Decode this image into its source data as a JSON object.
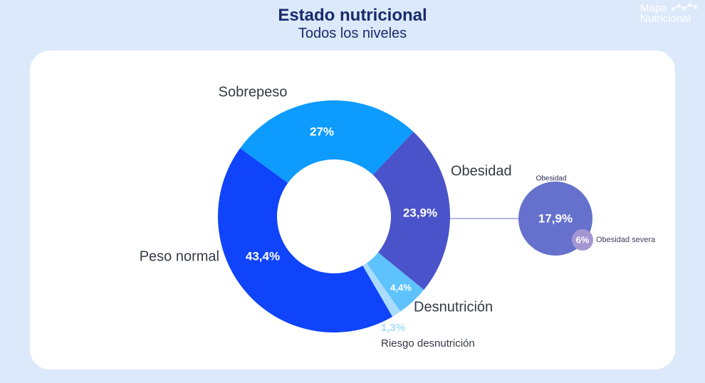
{
  "header": {
    "title": "Estado nutricional",
    "subtitle": "Todos los niveles",
    "brand_line1": "Mapa",
    "brand_line2": "Nutricional"
  },
  "chart_data": [
    {
      "type": "pie",
      "style": "donut",
      "categories": [
        "Sobrepeso",
        "Obesidad",
        "Desnutrición",
        "Riesgo desnutrición",
        "Peso normal"
      ],
      "values": [
        27,
        23.9,
        4.4,
        1.3,
        43.4
      ],
      "value_labels": [
        "27%",
        "23,9%",
        "4,4%",
        "1,3%",
        "43,4%"
      ],
      "colors": [
        "#0d9bfd",
        "#4a53c9",
        "#5ec3fd",
        "#a9dcfd",
        "#0f44fb"
      ]
    },
    {
      "type": "pie",
      "style": "bubble-breakdown",
      "parent": "Obesidad",
      "categories": [
        "Obesidad",
        "Obesidad severa"
      ],
      "values": [
        17.9,
        6
      ],
      "value_labels": [
        "17,9%",
        "6%"
      ],
      "colors": [
        "#6571cd",
        "#a396d2"
      ]
    }
  ]
}
